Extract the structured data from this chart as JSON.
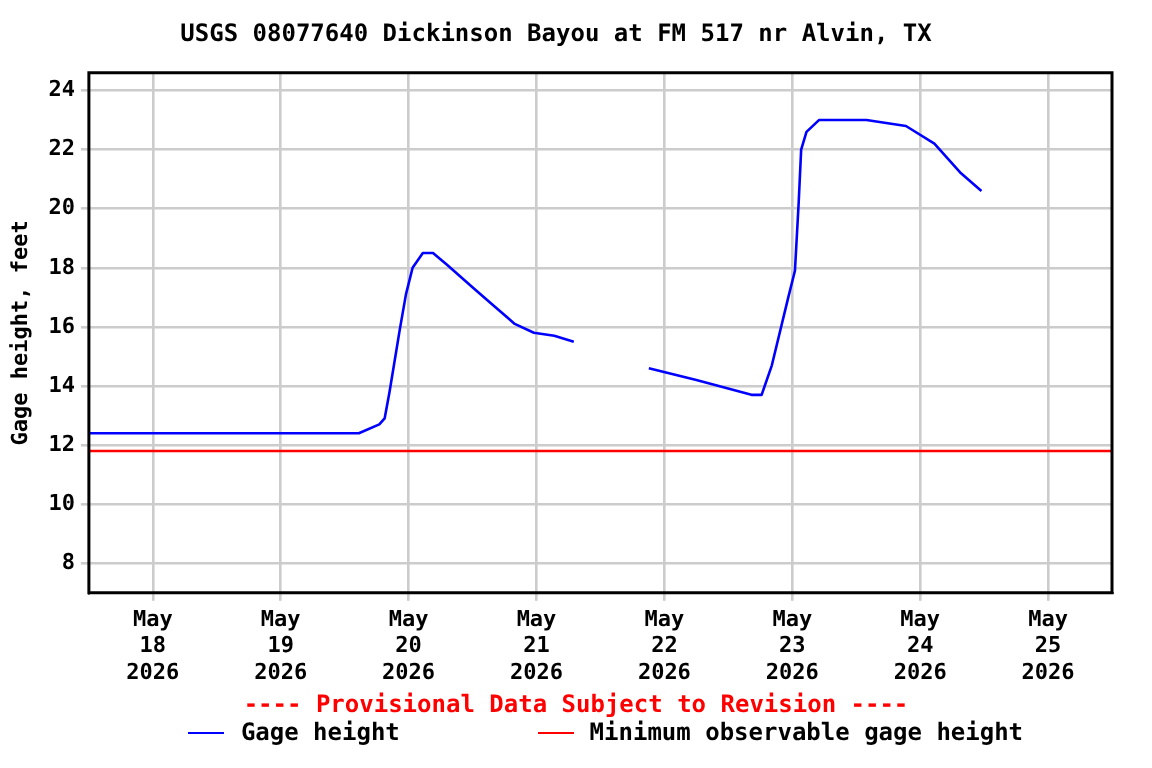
{
  "chart_data": {
    "type": "line",
    "title": "USGS 08077640 Dickinson Bayou at FM 517 nr Alvin, TX",
    "ylabel": "Gage height, feet",
    "x": [
      "2026-05-17T12:00",
      "2026-05-19T14:40",
      "2026-05-19T18:30",
      "2026-05-19T19:30",
      "2026-05-19T20:25",
      "2026-05-19T22:20",
      "2026-05-19T23:30",
      "2026-05-20T00:45",
      "2026-05-20T02:40",
      "2026-05-20T04:35",
      "2026-05-20T07:12",
      "2026-05-20T12:15",
      "2026-05-20T16:05",
      "2026-05-20T19:55",
      "2026-05-20T23:30",
      "2026-05-21T03:20",
      "2026-05-21T07:00",
      "2026-05-21T12:00",
      "2026-05-21T21:05",
      "2026-05-22T06:00",
      "2026-05-22T16:20",
      "2026-05-22T18:15",
      "2026-05-22T20:10",
      "2026-05-22T23:15",
      "2026-05-23T00:30",
      "2026-05-23T01:12",
      "2026-05-23T01:40",
      "2026-05-23T02:40",
      "2026-05-23T05:00",
      "2026-05-23T13:55",
      "2026-05-23T21:20",
      "2026-05-24T02:40",
      "2026-05-24T07:40",
      "2026-05-24T11:30"
    ],
    "series": [
      {
        "name": "Gage height",
        "color": "#0000ff",
        "values": [
          12.4,
          12.4,
          12.7,
          12.9,
          13.8,
          15.9,
          17.1,
          18.0,
          18.5,
          18.5,
          18.1,
          17.3,
          16.7,
          16.1,
          15.8,
          15.7,
          15.5,
          null,
          14.6,
          14.2,
          13.7,
          13.7,
          14.7,
          17.0,
          17.9,
          20.2,
          22.0,
          22.6,
          23.0,
          23.0,
          22.8,
          22.2,
          21.2,
          20.6
        ]
      }
    ],
    "ref_lines": [
      {
        "axis": "y",
        "value": 11.8,
        "label": "Minimum observable gage height",
        "color": "#ff0000"
      }
    ],
    "annotations": [
      "---- Provisional Data Subject to Revision ----"
    ],
    "xlim": [
      "2026-05-17T12:00",
      "2026-05-25T12:00"
    ],
    "xticks": [
      {
        "value": "2026-05-18",
        "label": "May 18 2026"
      },
      {
        "value": "2026-05-19",
        "label": "May 19 2026"
      },
      {
        "value": "2026-05-20",
        "label": "May 20 2026"
      },
      {
        "value": "2026-05-21",
        "label": "May 21 2026"
      },
      {
        "value": "2026-05-22",
        "label": "May 22 2026"
      },
      {
        "value": "2026-05-23",
        "label": "May 23 2026"
      },
      {
        "value": "2026-05-24",
        "label": "May 24 2026"
      },
      {
        "value": "2026-05-25",
        "label": "May 25 2026"
      }
    ],
    "ylim": [
      7,
      24.6
    ],
    "yticks": [
      8,
      10,
      12,
      14,
      16,
      18,
      20,
      22,
      24
    ],
    "grid": true,
    "legend": "bottom",
    "marker": "none",
    "line_style": "solid"
  }
}
